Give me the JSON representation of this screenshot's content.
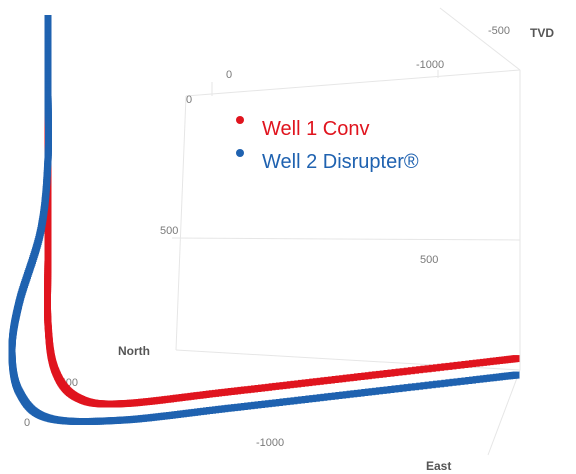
{
  "chart_data": {
    "type": "scatter",
    "projection": "3d",
    "axes": {
      "tvd": {
        "label": "TVD",
        "ticks": [
          "-500",
          "0",
          "500"
        ]
      },
      "north": {
        "label": "North",
        "ticks": [
          "-500",
          "0"
        ]
      },
      "east": {
        "label": "East",
        "ticks": [
          "-1000",
          "0",
          "-1000",
          "500"
        ]
      }
    },
    "legend": {
      "placement": "top-center",
      "entries": [
        {
          "name": "Well 1 Conv",
          "color": "#e0141e"
        },
        {
          "name": "Well 2 Disrupter®",
          "color": "#1f62b0"
        }
      ]
    },
    "series": [
      {
        "name": "Well 1 Conv",
        "color": "#e0141e",
        "description_points": "vertical section then build curve then lateral toward +North",
        "points": [
          {
            "north": 0,
            "east": 0,
            "tvd": 0
          },
          {
            "north": 0,
            "east": 0,
            "tvd": 150
          },
          {
            "north": 0,
            "east": 0,
            "tvd": 300
          },
          {
            "north": 0,
            "east": 0,
            "tvd": 450
          },
          {
            "north": 0,
            "east": 0,
            "tvd": 600
          },
          {
            "north": 20,
            "east": 0,
            "tvd": 700
          },
          {
            "north": 80,
            "east": 0,
            "tvd": 760
          },
          {
            "north": 200,
            "east": 0,
            "tvd": 780
          },
          {
            "north": 500,
            "east": 0,
            "tvd": 770
          },
          {
            "north": 900,
            "east": 0,
            "tvd": 755
          },
          {
            "north": 1300,
            "east": 0,
            "tvd": 740
          }
        ]
      },
      {
        "name": "Well 2 Disrupter®",
        "color": "#1f62b0",
        "points": [
          {
            "north": 0,
            "east": 0,
            "tvd": -50
          },
          {
            "north": 0,
            "east": 0,
            "tvd": 100
          },
          {
            "north": 0,
            "east": 0,
            "tvd": 250
          },
          {
            "north": -20,
            "east": 0,
            "tvd": 400
          },
          {
            "north": -80,
            "east": 0,
            "tvd": 550
          },
          {
            "north": -100,
            "east": 0,
            "tvd": 650
          },
          {
            "north": -80,
            "east": 0,
            "tvd": 740
          },
          {
            "north": 0,
            "east": 0,
            "tvd": 800
          },
          {
            "north": 200,
            "east": 0,
            "tvd": 815
          },
          {
            "north": 500,
            "east": 0,
            "tvd": 805
          },
          {
            "north": 900,
            "east": 0,
            "tvd": 790
          },
          {
            "north": 1300,
            "east": 0,
            "tvd": 775
          }
        ]
      }
    ]
  }
}
